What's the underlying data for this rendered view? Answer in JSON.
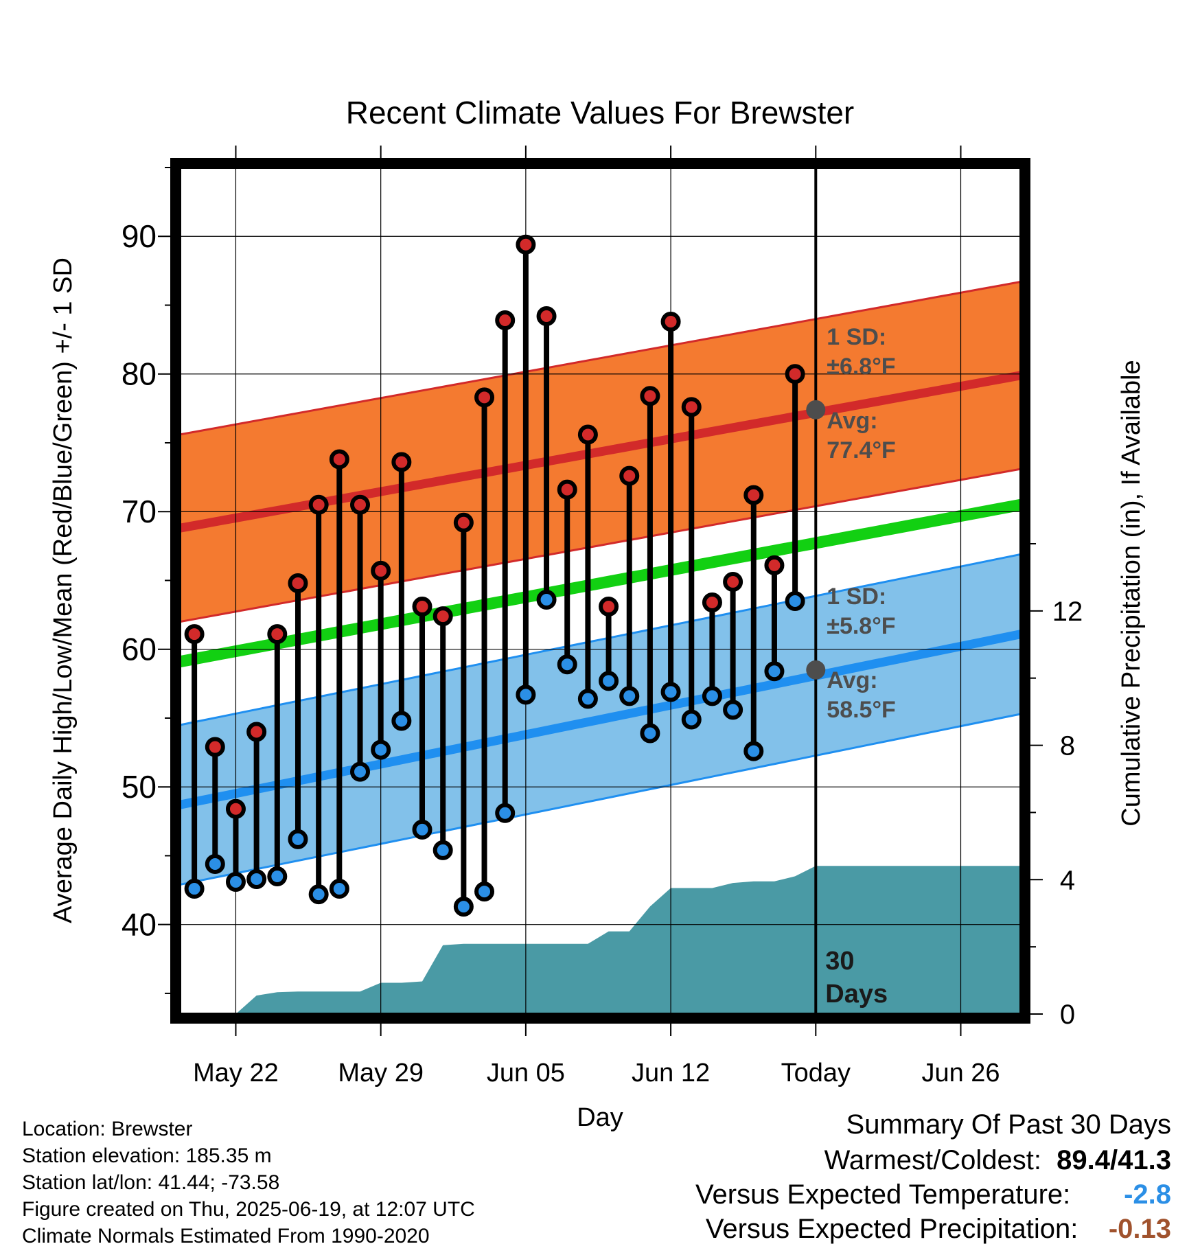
{
  "chart_data": {
    "type": "line",
    "title": "Recent Climate Values For Brewster",
    "xlabel": "Day",
    "ylabel_left": "Average Daily High/Low/Mean (Red/Blue/Green) +/- 1 SD",
    "ylabel_right": "Cumulative Precipitation (in), If Available",
    "x_tick_labels": [
      "May 22",
      "May 29",
      "Jun 05",
      "Jun 12",
      "Today",
      "Jun 26"
    ],
    "y_ticks_left": [
      40,
      50,
      60,
      70,
      80,
      90
    ],
    "y_ticks_right": [
      0,
      4,
      8,
      12
    ],
    "ylim_left": [
      33.5,
      95
    ],
    "ylim_right": [
      0,
      25.2
    ],
    "x_day_range": [
      -30.7,
      9.9
    ],
    "today_label": "30\nDays",
    "grid": true,
    "series": [
      {
        "name": "High",
        "color": "#d22a2a",
        "values": [
          61.1,
          52.9,
          48.4,
          54.0,
          61.1,
          64.8,
          70.5,
          73.8,
          70.5,
          65.7,
          73.6,
          63.1,
          62.4,
          69.2,
          78.3,
          83.9,
          89.4,
          84.2,
          71.6,
          75.6,
          63.1,
          72.6,
          78.4,
          83.8,
          77.6,
          63.4,
          64.9,
          71.2,
          66.1,
          80.0
        ]
      },
      {
        "name": "Low",
        "color": "#2b8fe6",
        "values": [
          42.6,
          44.4,
          43.1,
          43.3,
          43.5,
          46.2,
          42.2,
          42.6,
          51.1,
          52.7,
          54.8,
          46.9,
          45.4,
          41.3,
          42.4,
          48.1,
          56.7,
          63.6,
          58.9,
          56.4,
          57.7,
          56.6,
          53.9,
          56.9,
          54.9,
          56.6,
          55.6,
          52.6,
          58.4,
          63.5
        ]
      },
      {
        "name": "Cumulative Precipitation",
        "color": "#4a9aa5",
        "days": [
          -29,
          -28.5,
          -28,
          -27,
          -26,
          -25,
          -24,
          -23,
          -22,
          -21,
          -20,
          -19,
          -18,
          -17,
          -16,
          -15,
          -14,
          -13,
          -12,
          -11,
          -10,
          -9,
          -8,
          -7,
          -6,
          -5,
          -4,
          -3,
          -2,
          -1,
          0,
          10
        ],
        "values": [
          0,
          0,
          0,
          0.55,
          0.65,
          0.67,
          0.67,
          0.67,
          0.67,
          0.93,
          0.93,
          0.97,
          2.05,
          2.09,
          2.09,
          2.09,
          2.09,
          2.09,
          2.09,
          2.09,
          2.46,
          2.46,
          3.2,
          3.75,
          3.75,
          3.75,
          3.9,
          3.95,
          3.95,
          4.1,
          4.41,
          4.41
        ]
      }
    ],
    "normals": {
      "high": {
        "name": "Avg High",
        "color": "#d22a2a",
        "start": 68.8,
        "today": 77.4,
        "end": 79.9
      },
      "high_sd": {
        "color": "#f47a30",
        "edge_color": "#d22a2a",
        "sd": 6.8
      },
      "low": {
        "name": "Avg Low",
        "color": "#1f8ff0",
        "start": 48.7,
        "today": 58.5,
        "end": 61.1
      },
      "low_sd": {
        "color": "#82c1ea",
        "edge_color": "#1f8ff0",
        "sd": 5.8
      },
      "mean": {
        "name": "Avg Mean",
        "color": "#12d012",
        "start": 59.1,
        "end": 70.5
      }
    },
    "annotations": {
      "high_sd_label": "1 SD:",
      "high_sd_value": "±6.8°F",
      "high_avg_label": "Avg:",
      "high_avg_value": "77.4°F",
      "low_sd_label": "1 SD:",
      "low_sd_value": "±5.8°F",
      "low_avg_label": "Avg:",
      "low_avg_value": "58.5°F",
      "color": "#4d4d4d"
    }
  },
  "info": {
    "location": "Location: Brewster",
    "elevation": "Station elevation: 185.35 m",
    "latlon": "Station lat/lon: 41.44; -73.58",
    "created": "Figure created on Thu, 2025-06-19, at 12:07 UTC",
    "normals": "Climate Normals Estimated From 1990-2020"
  },
  "summary": {
    "title": "Summary Of Past 30 Days",
    "warm_label": "Warmest/Coldest:",
    "warm_value": "89.4/41.3",
    "temp_label": "Versus Expected Temperature:",
    "temp_value": "-2.8",
    "temp_color": "#2b8fe6",
    "precip_label": "Versus Expected Precipitation:",
    "precip_value": "-0.13",
    "precip_color": "#a0522d"
  }
}
